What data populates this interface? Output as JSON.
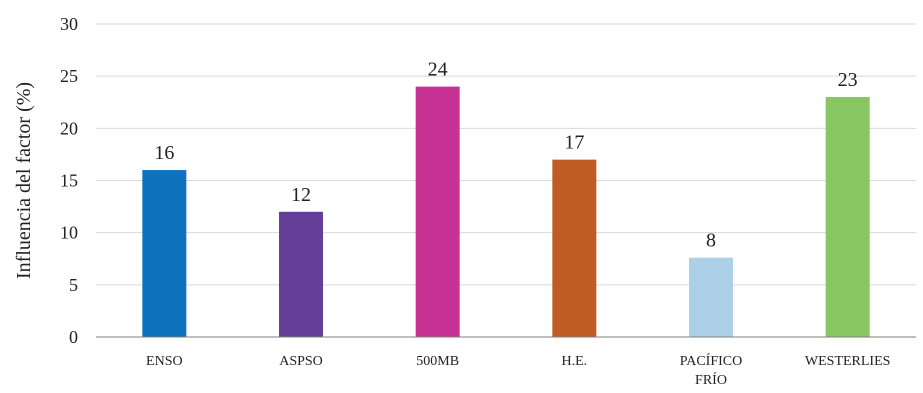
{
  "chart_data": {
    "type": "bar",
    "categories": [
      "ENSO",
      "ASPSO",
      "500MB",
      "H.E.",
      "PACÍFICO FRÍO",
      "WESTERLIES"
    ],
    "category_lines": [
      [
        "ENSO"
      ],
      [
        "ASPSO"
      ],
      [
        "500MB"
      ],
      [
        "H.E."
      ],
      [
        "PACÍFICO",
        "FRÍO"
      ],
      [
        "WESTERLIES"
      ]
    ],
    "values": [
      16,
      12,
      24,
      17,
      7.6,
      23
    ],
    "data_labels": [
      "16",
      "12",
      "24",
      "17",
      "8",
      "23"
    ],
    "colors": [
      "#0e72bd",
      "#653f97",
      "#c63394",
      "#c05b24",
      "#abd0e8",
      "#87c661"
    ],
    "title": "",
    "xlabel": "",
    "ylabel": "Influencia del factor (%)",
    "ylim": [
      0,
      30
    ],
    "yticks": [
      0,
      5,
      10,
      15,
      20,
      25,
      30
    ],
    "grid": "horizontal",
    "legend": "none"
  }
}
